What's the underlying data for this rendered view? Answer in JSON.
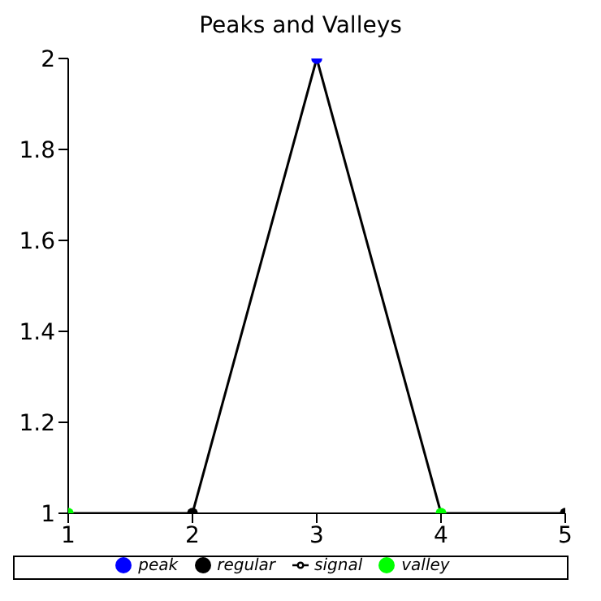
{
  "chart_data": {
    "type": "scatter",
    "title": "Peaks and Valleys",
    "marker": "circle",
    "legend": "bottom",
    "grid": false,
    "xlim": [
      1,
      5
    ],
    "xticks": [
      1,
      2,
      3,
      4,
      5
    ],
    "ylim": [
      1,
      2
    ],
    "yticks": [
      1,
      1.2,
      1.4,
      1.6,
      1.8,
      2
    ],
    "series": [
      {
        "name": "regular",
        "color": "#000000",
        "x": [
          2,
          5
        ],
        "values": [
          1,
          1
        ]
      },
      {
        "name": "valley",
        "color": "#00ff00",
        "x": [
          1,
          4
        ],
        "values": [
          1,
          1
        ]
      },
      {
        "name": "peak",
        "color": "#0000ff",
        "x": [
          3
        ],
        "values": [
          2
        ]
      },
      {
        "name": "signal",
        "type": "line",
        "marker": "none",
        "color": "#000000",
        "x": [
          1,
          2,
          3,
          4,
          5
        ],
        "values": [
          1,
          1,
          2,
          1,
          1
        ]
      }
    ]
  }
}
